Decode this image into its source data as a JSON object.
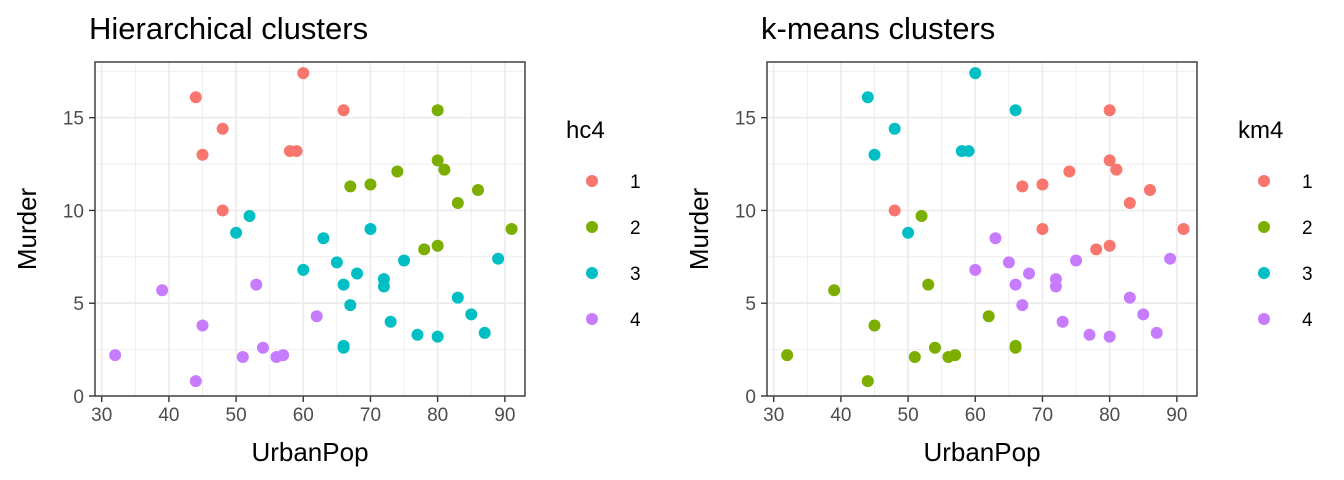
{
  "chart_data": [
    {
      "type": "scatter",
      "title": "Hierarchical clusters",
      "xlabel": "UrbanPop",
      "ylabel": "Murder",
      "xlim": [
        29,
        93
      ],
      "ylim": [
        0,
        18
      ],
      "xticks": [
        30,
        40,
        50,
        60,
        70,
        80,
        90
      ],
      "yticks": [
        0,
        5,
        10,
        15
      ],
      "grid": true,
      "legend": {
        "title": "hc4",
        "placement": "right",
        "entries": [
          "1",
          "2",
          "3",
          "4"
        ],
        "colors": [
          "#F8766D",
          "#7CAE00",
          "#00BFC4",
          "#C77CFF"
        ]
      },
      "points": [
        {
          "x": 60,
          "y": 17.4,
          "c": "1"
        },
        {
          "x": 44,
          "y": 16.1,
          "c": "1"
        },
        {
          "x": 66,
          "y": 15.4,
          "c": "1"
        },
        {
          "x": 48,
          "y": 14.4,
          "c": "1"
        },
        {
          "x": 58,
          "y": 13.2,
          "c": "1"
        },
        {
          "x": 59,
          "y": 13.2,
          "c": "1"
        },
        {
          "x": 45,
          "y": 13.0,
          "c": "1"
        },
        {
          "x": 48,
          "y": 10.0,
          "c": "1"
        },
        {
          "x": 80,
          "y": 15.4,
          "c": "2"
        },
        {
          "x": 80,
          "y": 12.7,
          "c": "2"
        },
        {
          "x": 81,
          "y": 12.2,
          "c": "2"
        },
        {
          "x": 74,
          "y": 12.1,
          "c": "2"
        },
        {
          "x": 70,
          "y": 11.4,
          "c": "2"
        },
        {
          "x": 67,
          "y": 11.3,
          "c": "2"
        },
        {
          "x": 86,
          "y": 11.1,
          "c": "2"
        },
        {
          "x": 83,
          "y": 10.4,
          "c": "2"
        },
        {
          "x": 91,
          "y": 9.0,
          "c": "2"
        },
        {
          "x": 80,
          "y": 8.1,
          "c": "2"
        },
        {
          "x": 78,
          "y": 7.9,
          "c": "2"
        },
        {
          "x": 52,
          "y": 9.7,
          "c": "3"
        },
        {
          "x": 70,
          "y": 9.0,
          "c": "3"
        },
        {
          "x": 50,
          "y": 8.8,
          "c": "3"
        },
        {
          "x": 63,
          "y": 8.5,
          "c": "3"
        },
        {
          "x": 89,
          "y": 7.4,
          "c": "3"
        },
        {
          "x": 75,
          "y": 7.3,
          "c": "3"
        },
        {
          "x": 65,
          "y": 7.2,
          "c": "3"
        },
        {
          "x": 60,
          "y": 6.8,
          "c": "3"
        },
        {
          "x": 68,
          "y": 6.6,
          "c": "3"
        },
        {
          "x": 72,
          "y": 6.3,
          "c": "3"
        },
        {
          "x": 66,
          "y": 6.0,
          "c": "3"
        },
        {
          "x": 72,
          "y": 5.9,
          "c": "3"
        },
        {
          "x": 83,
          "y": 5.3,
          "c": "3"
        },
        {
          "x": 67,
          "y": 4.9,
          "c": "3"
        },
        {
          "x": 85,
          "y": 4.4,
          "c": "3"
        },
        {
          "x": 73,
          "y": 4.0,
          "c": "3"
        },
        {
          "x": 87,
          "y": 3.4,
          "c": "3"
        },
        {
          "x": 77,
          "y": 3.3,
          "c": "3"
        },
        {
          "x": 80,
          "y": 3.2,
          "c": "3"
        },
        {
          "x": 66,
          "y": 2.7,
          "c": "3"
        },
        {
          "x": 66,
          "y": 2.6,
          "c": "3"
        },
        {
          "x": 53,
          "y": 6.0,
          "c": "4"
        },
        {
          "x": 39,
          "y": 5.7,
          "c": "4"
        },
        {
          "x": 62,
          "y": 4.3,
          "c": "4"
        },
        {
          "x": 45,
          "y": 3.8,
          "c": "4"
        },
        {
          "x": 54,
          "y": 2.6,
          "c": "4"
        },
        {
          "x": 32,
          "y": 2.2,
          "c": "4"
        },
        {
          "x": 57,
          "y": 2.2,
          "c": "4"
        },
        {
          "x": 51,
          "y": 2.1,
          "c": "4"
        },
        {
          "x": 56,
          "y": 2.1,
          "c": "4"
        },
        {
          "x": 44,
          "y": 0.8,
          "c": "4"
        }
      ]
    },
    {
      "type": "scatter",
      "title": "k-means clusters",
      "xlabel": "UrbanPop",
      "ylabel": "Murder",
      "xlim": [
        29,
        93
      ],
      "ylim": [
        0,
        18
      ],
      "xticks": [
        30,
        40,
        50,
        60,
        70,
        80,
        90
      ],
      "yticks": [
        0,
        5,
        10,
        15
      ],
      "grid": true,
      "legend": {
        "title": "km4",
        "placement": "right",
        "entries": [
          "1",
          "2",
          "3",
          "4"
        ],
        "colors": [
          "#F8766D",
          "#7CAE00",
          "#00BFC4",
          "#C77CFF"
        ]
      },
      "points": [
        {
          "x": 80,
          "y": 15.4,
          "c": "1"
        },
        {
          "x": 80,
          "y": 12.7,
          "c": "1"
        },
        {
          "x": 81,
          "y": 12.2,
          "c": "1"
        },
        {
          "x": 74,
          "y": 12.1,
          "c": "1"
        },
        {
          "x": 70,
          "y": 11.4,
          "c": "1"
        },
        {
          "x": 67,
          "y": 11.3,
          "c": "1"
        },
        {
          "x": 86,
          "y": 11.1,
          "c": "1"
        },
        {
          "x": 83,
          "y": 10.4,
          "c": "1"
        },
        {
          "x": 48,
          "y": 10.0,
          "c": "1"
        },
        {
          "x": 70,
          "y": 9.0,
          "c": "1"
        },
        {
          "x": 91,
          "y": 9.0,
          "c": "1"
        },
        {
          "x": 80,
          "y": 8.1,
          "c": "1"
        },
        {
          "x": 78,
          "y": 7.9,
          "c": "1"
        },
        {
          "x": 52,
          "y": 9.7,
          "c": "2"
        },
        {
          "x": 53,
          "y": 6.0,
          "c": "2"
        },
        {
          "x": 39,
          "y": 5.7,
          "c": "2"
        },
        {
          "x": 62,
          "y": 4.3,
          "c": "2"
        },
        {
          "x": 45,
          "y": 3.8,
          "c": "2"
        },
        {
          "x": 66,
          "y": 2.7,
          "c": "2"
        },
        {
          "x": 66,
          "y": 2.6,
          "c": "2"
        },
        {
          "x": 54,
          "y": 2.6,
          "c": "2"
        },
        {
          "x": 32,
          "y": 2.2,
          "c": "2"
        },
        {
          "x": 57,
          "y": 2.2,
          "c": "2"
        },
        {
          "x": 51,
          "y": 2.1,
          "c": "2"
        },
        {
          "x": 56,
          "y": 2.1,
          "c": "2"
        },
        {
          "x": 44,
          "y": 0.8,
          "c": "2"
        },
        {
          "x": 60,
          "y": 17.4,
          "c": "3"
        },
        {
          "x": 44,
          "y": 16.1,
          "c": "3"
        },
        {
          "x": 66,
          "y": 15.4,
          "c": "3"
        },
        {
          "x": 48,
          "y": 14.4,
          "c": "3"
        },
        {
          "x": 58,
          "y": 13.2,
          "c": "3"
        },
        {
          "x": 59,
          "y": 13.2,
          "c": "3"
        },
        {
          "x": 45,
          "y": 13.0,
          "c": "3"
        },
        {
          "x": 50,
          "y": 8.8,
          "c": "3"
        },
        {
          "x": 63,
          "y": 8.5,
          "c": "4"
        },
        {
          "x": 89,
          "y": 7.4,
          "c": "4"
        },
        {
          "x": 75,
          "y": 7.3,
          "c": "4"
        },
        {
          "x": 65,
          "y": 7.2,
          "c": "4"
        },
        {
          "x": 60,
          "y": 6.8,
          "c": "4"
        },
        {
          "x": 68,
          "y": 6.6,
          "c": "4"
        },
        {
          "x": 72,
          "y": 6.3,
          "c": "4"
        },
        {
          "x": 66,
          "y": 6.0,
          "c": "4"
        },
        {
          "x": 72,
          "y": 5.9,
          "c": "4"
        },
        {
          "x": 83,
          "y": 5.3,
          "c": "4"
        },
        {
          "x": 67,
          "y": 4.9,
          "c": "4"
        },
        {
          "x": 85,
          "y": 4.4,
          "c": "4"
        },
        {
          "x": 73,
          "y": 4.0,
          "c": "4"
        },
        {
          "x": 87,
          "y": 3.4,
          "c": "4"
        },
        {
          "x": 77,
          "y": 3.3,
          "c": "4"
        },
        {
          "x": 80,
          "y": 3.2,
          "c": "4"
        }
      ]
    }
  ]
}
